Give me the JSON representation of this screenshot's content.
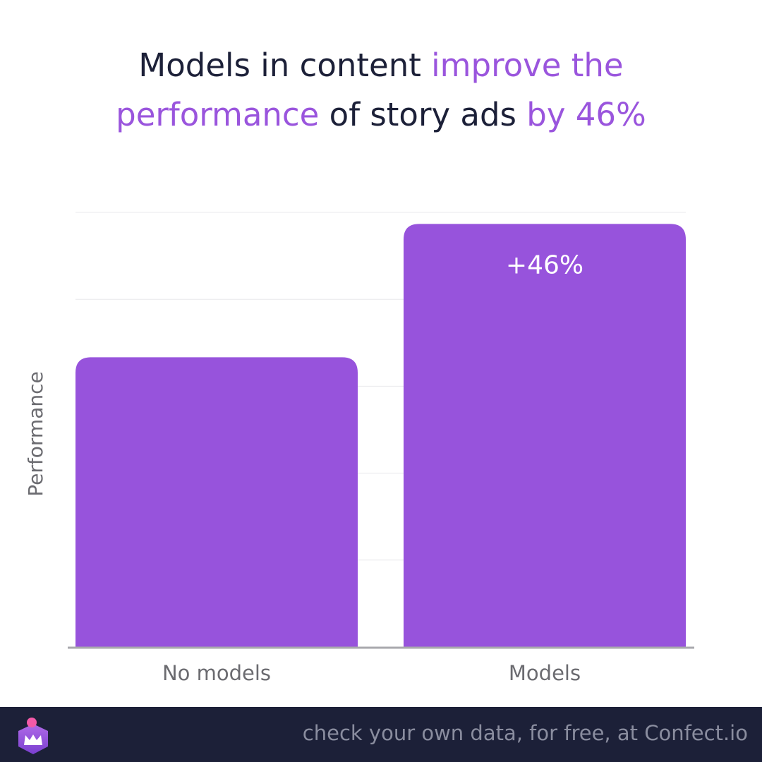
{
  "title": {
    "part1": "Models in content ",
    "part2": "improve the",
    "part3": "performance",
    "part4": " of story ads ",
    "part5": "by 46%"
  },
  "chart_data": {
    "type": "bar",
    "categories": [
      "No models",
      "Models"
    ],
    "values": [
      100,
      146
    ],
    "ylabel": "Performance",
    "ylim": [
      0,
      150
    ],
    "grid": true,
    "legend": "none",
    "annotations": [
      {
        "category": "Models",
        "text": "+46%"
      }
    ],
    "colors": {
      "bar": "#9753dc",
      "grid": "#e8e8ec",
      "axis": "#a9a9ad",
      "label": "#6b6b70",
      "annotation": "#ffffff"
    }
  },
  "footer": {
    "text": "check your own data, for free, at Confect.io",
    "logo": "confect-crown-logo"
  },
  "colors": {
    "title": "#1c2038",
    "highlight": "#9a55dd",
    "footer_bg": "#1c2038",
    "footer_text": "#8a8d9f"
  }
}
